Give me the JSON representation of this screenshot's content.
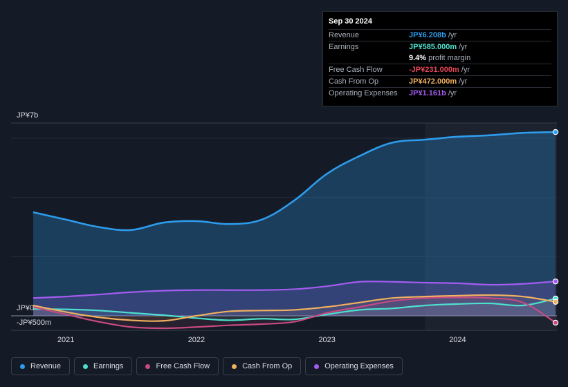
{
  "tooltip": {
    "date": "Sep 30 2024",
    "rows": [
      {
        "label": "Revenue",
        "value": "JP¥6.208b",
        "unit": "/yr",
        "color": "#2d9cec"
      },
      {
        "label": "Earnings",
        "value": "JP¥585.000m",
        "unit": "/yr",
        "color": "#4ee0cf"
      },
      {
        "label": "",
        "value": "9.4%",
        "unit": "profit margin",
        "color": "#ffffff"
      },
      {
        "label": "Free Cash Flow",
        "value": "-JP¥231.000m",
        "unit": "/yr",
        "color": "#e8455a"
      },
      {
        "label": "Cash From Op",
        "value": "JP¥472.000m",
        "unit": "/yr",
        "color": "#f0b060"
      },
      {
        "label": "Operating Expenses",
        "value": "JP¥1.161b",
        "unit": "/yr",
        "color": "#a45cf0"
      }
    ]
  },
  "chart_data": {
    "type": "line",
    "title": "",
    "y_axis_labels": [
      "JP¥7b",
      "JP¥0",
      "-JP¥500m"
    ],
    "ylim": [
      -500,
      7000
    ],
    "unit": "JP¥ millions",
    "x_tick_labels": [
      "2021",
      "2022",
      "2023",
      "2024"
    ],
    "x": [
      2020.75,
      2021.0,
      2021.25,
      2021.5,
      2021.75,
      2022.0,
      2022.25,
      2022.5,
      2022.75,
      2023.0,
      2023.25,
      2023.5,
      2023.75,
      2024.0,
      2024.25,
      2024.5,
      2024.75
    ],
    "highlight_from": 2023.75,
    "series": [
      {
        "name": "Revenue",
        "color": "#2d9cec",
        "values": [
          3500,
          3250,
          3000,
          2900,
          3150,
          3200,
          3100,
          3250,
          3900,
          4800,
          5400,
          5850,
          5950,
          6050,
          6100,
          6180,
          6208
        ]
      },
      {
        "name": "Earnings",
        "color": "#4ee0cf",
        "values": [
          230,
          220,
          180,
          100,
          20,
          -80,
          -150,
          -100,
          -120,
          50,
          200,
          250,
          350,
          400,
          420,
          350,
          585
        ]
      },
      {
        "name": "Free Cash Flow",
        "color": "#c84a82",
        "values": [
          300,
          50,
          -200,
          -380,
          -420,
          -380,
          -320,
          -280,
          -200,
          100,
          300,
          500,
          600,
          620,
          600,
          450,
          -231
        ]
      },
      {
        "name": "Cash From Op",
        "color": "#f0b060",
        "values": [
          350,
          130,
          -50,
          -150,
          -170,
          0,
          150,
          180,
          200,
          300,
          450,
          600,
          650,
          680,
          700,
          650,
          472
        ]
      },
      {
        "name": "Operating Expenses",
        "color": "#a45cf0",
        "values": [
          600,
          650,
          720,
          800,
          850,
          870,
          870,
          870,
          900,
          1000,
          1150,
          1150,
          1120,
          1100,
          1050,
          1080,
          1161
        ]
      }
    ]
  },
  "legend": [
    {
      "label": "Revenue",
      "color": "#2d9cec"
    },
    {
      "label": "Earnings",
      "color": "#4ee0cf"
    },
    {
      "label": "Free Cash Flow",
      "color": "#c84a82"
    },
    {
      "label": "Cash From Op",
      "color": "#f0b060"
    },
    {
      "label": "Operating Expenses",
      "color": "#a45cf0"
    }
  ]
}
